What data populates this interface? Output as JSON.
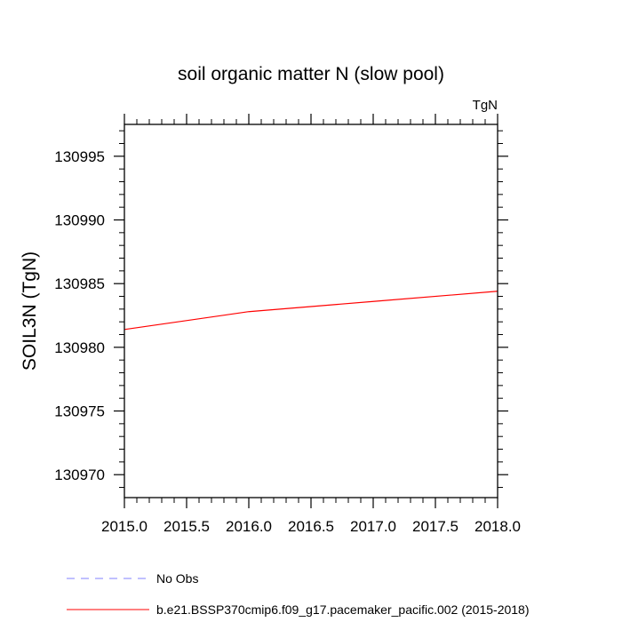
{
  "chart_data": {
    "type": "line",
    "title": "soil organic matter N (slow pool)",
    "units_label": "TgN",
    "xlabel": "",
    "ylabel": "SOIL3N  (TgN)",
    "xlim": [
      2015.0,
      2018.0
    ],
    "ylim": [
      130968.2,
      130997.5
    ],
    "x_ticks": [
      2015.0,
      2015.5,
      2016.0,
      2016.5,
      2017.0,
      2017.5,
      2018.0
    ],
    "x_tick_labels": [
      "2015.0",
      "2015.5",
      "2016.0",
      "2016.5",
      "2017.0",
      "2017.5",
      "2018.0"
    ],
    "y_ticks": [
      130970,
      130975,
      130980,
      130985,
      130990,
      130995
    ],
    "y_tick_labels": [
      "130970",
      "130975",
      "130980",
      "130985",
      "130990",
      "130995"
    ],
    "grid": false,
    "legend_position": "bottom",
    "series": [
      {
        "name": "No Obs",
        "color": "#8080ff",
        "style": "dashed",
        "x": [],
        "y": []
      },
      {
        "name": "b.e21.BSSP370cmip6.f09_g17.pacemaker_pacific.002 (2015-2018)",
        "color": "#ff0000",
        "style": "solid",
        "x": [
          2015.0,
          2016.0,
          2017.0,
          2018.0
        ],
        "y": [
          130981.4,
          130982.8,
          130983.6,
          130984.4
        ]
      }
    ]
  }
}
